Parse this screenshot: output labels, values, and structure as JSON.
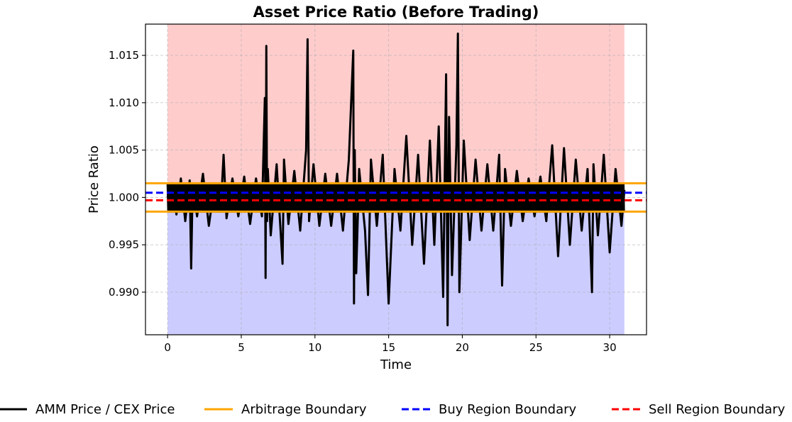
{
  "chart_data": {
    "type": "line",
    "title": "Asset Price Ratio (Before Trading)",
    "xlabel": "Time",
    "ylabel": "Price Ratio",
    "xlim": [
      -1.5,
      32.5
    ],
    "ylim": [
      0.9855,
      1.0183
    ],
    "x_ticks": [
      0,
      5,
      10,
      15,
      20,
      25,
      30
    ],
    "x_tick_labels": [
      "0",
      "5",
      "10",
      "15",
      "20",
      "25",
      "30"
    ],
    "y_ticks": [
      0.99,
      0.995,
      1.0,
      1.005,
      1.01,
      1.015
    ],
    "y_tick_labels": [
      "0.990",
      "0.995",
      "1.000",
      "1.005",
      "1.010",
      "1.015"
    ],
    "grid": true,
    "shaded_regions": [
      {
        "name": "sell region (above 1)",
        "y_from": 1.0,
        "y_to": 1.0183,
        "x_from": 0,
        "x_to": 31,
        "color": "#ffcccc"
      },
      {
        "name": "buy region (below 1)",
        "y_from": 0.9855,
        "y_to": 1.0,
        "x_from": 0,
        "x_to": 31,
        "color": "#ccccff"
      }
    ],
    "reference_lines": [
      {
        "name": "Arbitrage Boundary",
        "y": 1.0015,
        "color": "#ffa500",
        "style": "solid"
      },
      {
        "name": "Arbitrage Boundary",
        "y": 0.9985,
        "color": "#ffa500",
        "style": "solid"
      },
      {
        "name": "Buy Region Boundary",
        "y": 1.0005,
        "color": "#0000ff",
        "style": "dashed"
      },
      {
        "name": "Sell Region Boundary",
        "y": 0.9997,
        "color": "#ff0000",
        "style": "dashed"
      }
    ],
    "series": [
      {
        "name": "AMM Price / CEX Price",
        "color": "#000000",
        "x": [
          0,
          0.3,
          0.6,
          0.9,
          1.2,
          1.5,
          1.6,
          1.7,
          2.0,
          2.4,
          2.8,
          3.2,
          3.6,
          3.8,
          4.0,
          4.4,
          4.8,
          5.2,
          5.6,
          6.0,
          6.4,
          6.6,
          6.65,
          6.7,
          6.75,
          6.8,
          7.0,
          7.4,
          7.8,
          7.9,
          8.2,
          8.6,
          9.0,
          9.4,
          9.5,
          9.6,
          9.9,
          10.3,
          10.7,
          11.1,
          11.5,
          11.9,
          12.3,
          12.6,
          12.65,
          12.7,
          12.8,
          13.0,
          13.4,
          13.6,
          13.8,
          14.2,
          14.6,
          15.0,
          15.4,
          15.8,
          16.2,
          16.6,
          17.0,
          17.4,
          17.8,
          18.1,
          18.4,
          18.7,
          18.9,
          19.0,
          19.1,
          19.3,
          19.6,
          19.7,
          19.8,
          20.1,
          20.5,
          20.9,
          21.3,
          21.7,
          22.1,
          22.5,
          22.7,
          22.9,
          23.3,
          23.7,
          24.1,
          24.5,
          24.9,
          25.3,
          25.7,
          26.1,
          26.5,
          26.9,
          27.3,
          27.7,
          28.1,
          28.5,
          28.8,
          28.9,
          29.2,
          29.6,
          30.0,
          30.4,
          30.8,
          31.0
        ],
        "y": [
          1.0,
          1.0015,
          0.9982,
          1.002,
          0.9975,
          1.0018,
          0.9925,
          1.0012,
          0.998,
          1.0025,
          0.997,
          1.0015,
          0.9985,
          1.0045,
          0.9978,
          1.002,
          0.998,
          1.0022,
          0.9972,
          1.002,
          0.998,
          1.0105,
          0.9915,
          1.016,
          0.9975,
          1.003,
          0.996,
          1.0035,
          0.993,
          1.004,
          0.9972,
          1.0028,
          0.9965,
          1.005,
          1.0167,
          0.9975,
          1.0035,
          0.997,
          1.0025,
          0.997,
          1.0025,
          0.9965,
          1.004,
          1.0155,
          0.9888,
          1.005,
          0.992,
          1.003,
          0.9965,
          0.9897,
          1.004,
          0.997,
          1.0045,
          0.9888,
          1.003,
          0.9965,
          1.0065,
          0.995,
          1.0045,
          0.993,
          1.006,
          0.995,
          1.0075,
          0.9895,
          1.013,
          0.9865,
          1.0085,
          0.9918,
          1.0055,
          1.0173,
          0.99,
          1.006,
          0.9955,
          1.004,
          0.9965,
          1.0035,
          0.9965,
          1.0045,
          0.9907,
          1.003,
          0.997,
          1.0028,
          0.9975,
          1.002,
          0.998,
          1.0022,
          0.9975,
          1.0055,
          0.9938,
          1.0052,
          0.995,
          1.004,
          0.9965,
          1.003,
          0.99,
          1.0035,
          0.996,
          1.0045,
          0.9942,
          1.003,
          0.997,
          1.0008
        ]
      }
    ],
    "legend": {
      "placement": "bottom",
      "entries": [
        {
          "label": "AMM Price / CEX Price",
          "color": "#000000",
          "style": "solid"
        },
        {
          "label": "Arbitrage Boundary",
          "color": "#ffa500",
          "style": "solid"
        },
        {
          "label": "Buy Region Boundary",
          "color": "#0000ff",
          "style": "dashed"
        },
        {
          "label": "Sell Region Boundary",
          "color": "#ff0000",
          "style": "dashed"
        }
      ]
    }
  }
}
